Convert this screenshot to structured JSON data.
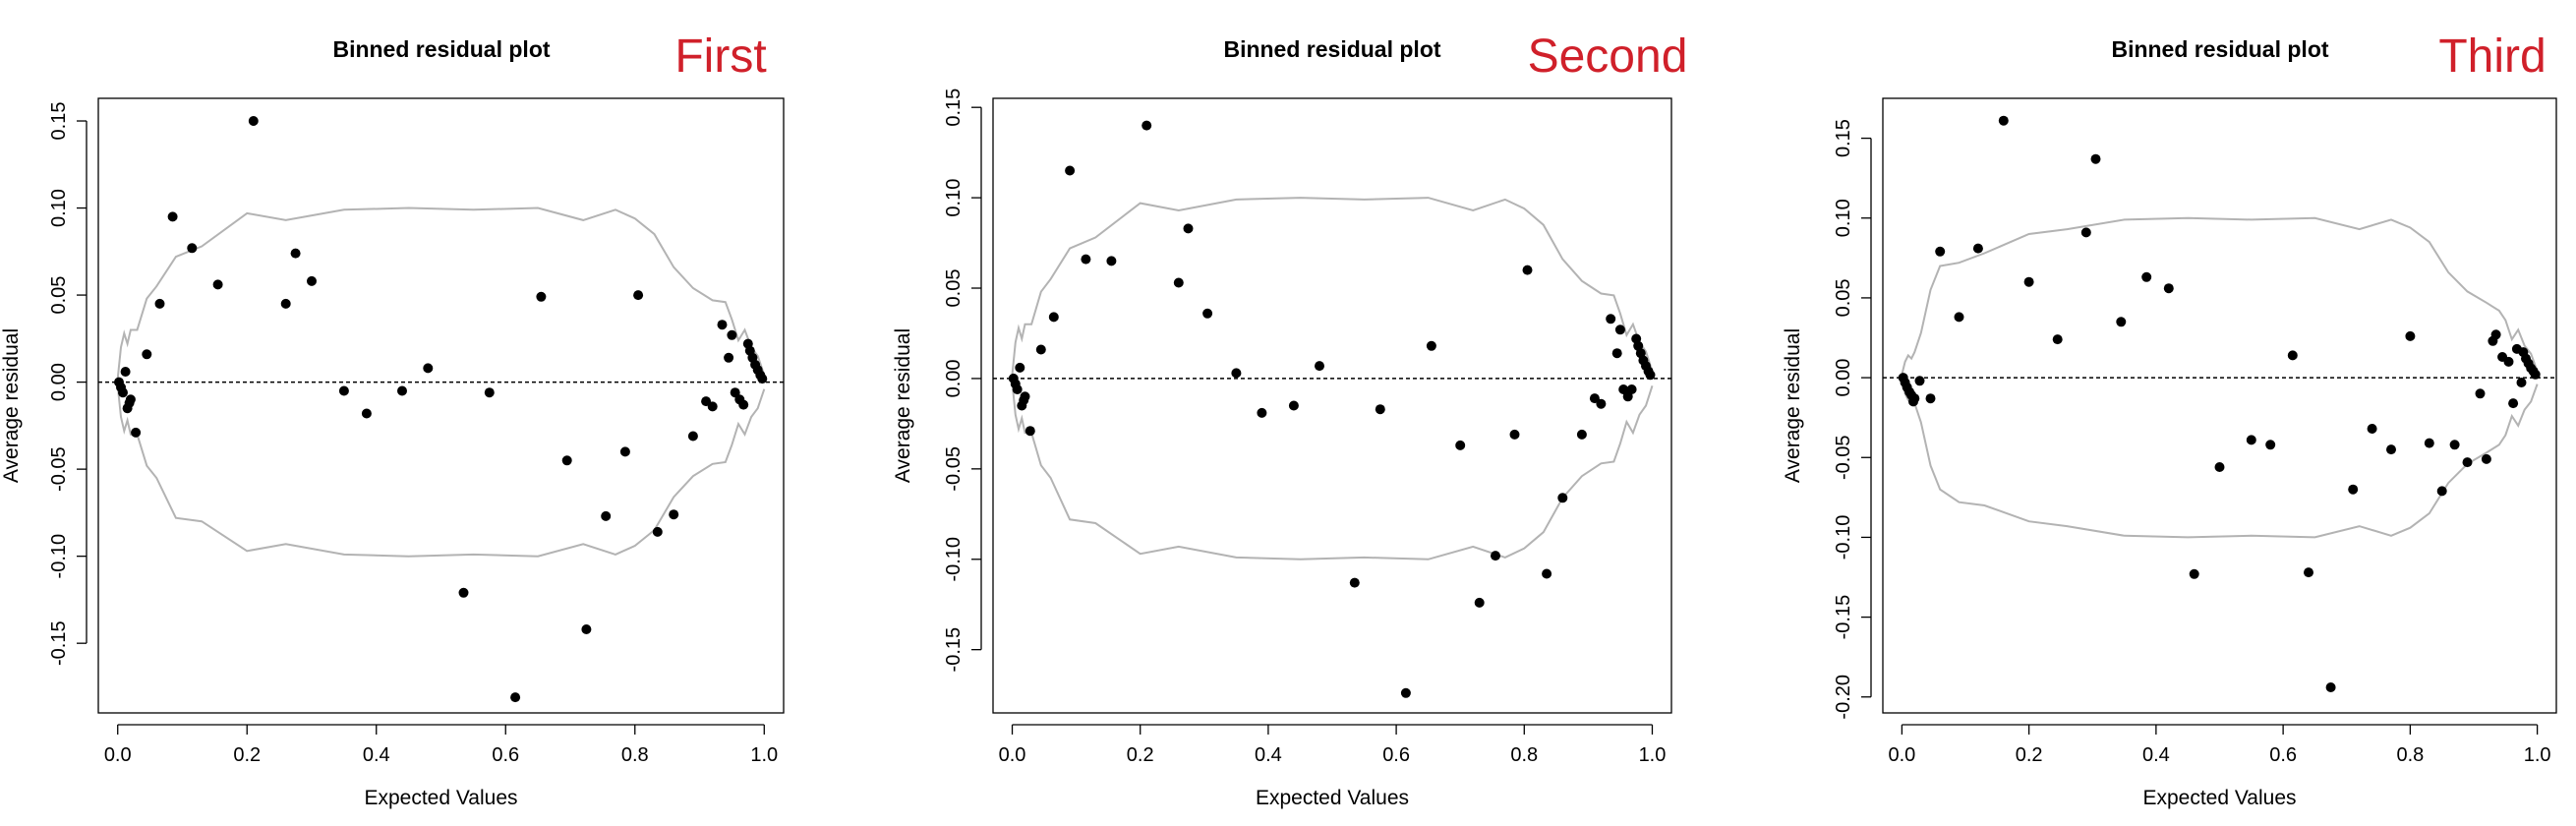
{
  "colors": {
    "points": "#000000",
    "envelope": "#b3b3b3",
    "tag": "#d0202a",
    "axis": "#000000"
  },
  "panels": [
    {
      "tag": "First"
    },
    {
      "tag": "Second"
    },
    {
      "tag": "Third"
    }
  ],
  "chart_data": [
    {
      "type": "scatter",
      "title": "Binned residual plot",
      "xlabel": "Expected Values",
      "ylabel": "Average residual",
      "xlim": [
        -0.03,
        1.03
      ],
      "ylim": [
        -0.19,
        0.163
      ],
      "xticks": [
        0.0,
        0.2,
        0.4,
        0.6,
        0.8,
        1.0
      ],
      "xtick_labels": [
        "0.0",
        "0.2",
        "0.4",
        "0.6",
        "0.8",
        "1.0"
      ],
      "yticks": [
        -0.15,
        -0.1,
        -0.05,
        0.0,
        0.05,
        0.1,
        0.15
      ],
      "ytick_labels": [
        "-0.15",
        "-0.10",
        "-0.05",
        "0.00",
        "0.05",
        "0.10",
        "0.15"
      ],
      "reference_line": 0,
      "grid": false,
      "points": {
        "x": [
          0.002,
          0.005,
          0.008,
          0.012,
          0.015,
          0.02,
          0.018,
          0.028,
          0.045,
          0.065,
          0.085,
          0.115,
          0.155,
          0.21,
          0.26,
          0.275,
          0.3,
          0.35,
          0.385,
          0.44,
          0.48,
          0.535,
          0.575,
          0.615,
          0.655,
          0.695,
          0.725,
          0.755,
          0.785,
          0.805,
          0.835,
          0.86,
          0.89,
          0.91,
          0.92,
          0.935,
          0.945,
          0.95,
          0.955,
          0.962,
          0.968,
          0.975,
          0.978,
          0.982,
          0.986,
          0.99,
          0.994,
          0.997
        ],
        "y": [
          0.0,
          -0.003,
          -0.006,
          0.006,
          -0.015,
          -0.01,
          -0.012,
          -0.029,
          0.016,
          0.045,
          0.095,
          0.077,
          0.056,
          0.15,
          0.045,
          0.074,
          0.058,
          -0.005,
          -0.018,
          -0.005,
          0.008,
          -0.121,
          -0.006,
          -0.181,
          0.049,
          -0.045,
          -0.142,
          -0.077,
          -0.04,
          0.05,
          -0.086,
          -0.076,
          -0.031,
          -0.011,
          -0.014,
          0.033,
          0.014,
          0.027,
          -0.006,
          -0.01,
          -0.013,
          0.022,
          0.018,
          0.014,
          0.01,
          0.007,
          0.004,
          0.002
        ]
      },
      "envelope": {
        "x": [
          0.0,
          0.005,
          0.01,
          0.015,
          0.02,
          0.03,
          0.045,
          0.06,
          0.09,
          0.13,
          0.2,
          0.26,
          0.35,
          0.45,
          0.55,
          0.65,
          0.72,
          0.77,
          0.8,
          0.83,
          0.86,
          0.89,
          0.92,
          0.94,
          0.95,
          0.96,
          0.97,
          0.98,
          0.99,
          1.0
        ],
        "upper": [
          0.002,
          0.02,
          0.028,
          0.022,
          0.03,
          0.03,
          0.048,
          0.055,
          0.072,
          0.078,
          0.097,
          0.093,
          0.099,
          0.1,
          0.099,
          0.1,
          0.093,
          0.099,
          0.094,
          0.085,
          0.066,
          0.054,
          0.047,
          0.046,
          0.036,
          0.024,
          0.03,
          0.02,
          0.015,
          0.004
        ],
        "lower": [
          -0.002,
          -0.02,
          -0.028,
          -0.022,
          -0.03,
          -0.03,
          -0.048,
          -0.055,
          -0.078,
          -0.08,
          -0.097,
          -0.093,
          -0.099,
          -0.1,
          -0.099,
          -0.1,
          -0.093,
          -0.099,
          -0.094,
          -0.085,
          -0.066,
          -0.054,
          -0.047,
          -0.046,
          -0.036,
          -0.024,
          -0.03,
          -0.02,
          -0.015,
          -0.004
        ]
      }
    },
    {
      "type": "scatter",
      "title": "Binned residual plot",
      "xlabel": "Expected Values",
      "ylabel": "Average residual",
      "xlim": [
        -0.03,
        1.03
      ],
      "ylim": [
        -0.185,
        0.155
      ],
      "xticks": [
        0.0,
        0.2,
        0.4,
        0.6,
        0.8,
        1.0
      ],
      "xtick_labels": [
        "0.0",
        "0.2",
        "0.4",
        "0.6",
        "0.8",
        "1.0"
      ],
      "yticks": [
        -0.15,
        -0.1,
        -0.05,
        0.0,
        0.05,
        0.1,
        0.15
      ],
      "ytick_labels": [
        "-0.15",
        "-0.10",
        "-0.05",
        "0.00",
        "0.05",
        "0.10",
        "0.15"
      ],
      "reference_line": 0,
      "grid": false,
      "points": {
        "x": [
          0.002,
          0.005,
          0.008,
          0.012,
          0.015,
          0.02,
          0.018,
          0.028,
          0.045,
          0.065,
          0.09,
          0.115,
          0.155,
          0.21,
          0.26,
          0.275,
          0.305,
          0.35,
          0.39,
          0.44,
          0.48,
          0.535,
          0.575,
          0.615,
          0.655,
          0.7,
          0.73,
          0.755,
          0.785,
          0.805,
          0.835,
          0.86,
          0.89,
          0.91,
          0.92,
          0.935,
          0.945,
          0.95,
          0.955,
          0.962,
          0.968,
          0.975,
          0.978,
          0.982,
          0.986,
          0.99,
          0.994,
          0.997
        ],
        "y": [
          0.0,
          -0.003,
          -0.006,
          0.006,
          -0.015,
          -0.01,
          -0.012,
          -0.029,
          0.016,
          0.034,
          0.115,
          0.066,
          0.065,
          0.14,
          0.053,
          0.083,
          0.036,
          0.003,
          -0.019,
          -0.015,
          0.007,
          -0.113,
          -0.017,
          -0.174,
          0.018,
          -0.037,
          -0.124,
          -0.098,
          -0.031,
          0.06,
          -0.108,
          -0.066,
          -0.031,
          -0.011,
          -0.014,
          0.033,
          0.014,
          0.027,
          -0.006,
          -0.01,
          -0.006,
          0.022,
          0.018,
          0.014,
          0.01,
          0.007,
          0.004,
          0.002
        ]
      },
      "envelope": {
        "x": [
          0.0,
          0.005,
          0.01,
          0.015,
          0.02,
          0.03,
          0.045,
          0.06,
          0.09,
          0.13,
          0.2,
          0.26,
          0.35,
          0.45,
          0.55,
          0.65,
          0.72,
          0.77,
          0.8,
          0.83,
          0.86,
          0.89,
          0.92,
          0.94,
          0.95,
          0.96,
          0.97,
          0.98,
          0.99,
          1.0
        ],
        "upper": [
          0.002,
          0.02,
          0.028,
          0.022,
          0.03,
          0.03,
          0.048,
          0.055,
          0.072,
          0.078,
          0.097,
          0.093,
          0.099,
          0.1,
          0.099,
          0.1,
          0.093,
          0.099,
          0.094,
          0.085,
          0.066,
          0.054,
          0.047,
          0.046,
          0.036,
          0.024,
          0.03,
          0.02,
          0.015,
          0.004
        ],
        "lower": [
          -0.002,
          -0.02,
          -0.028,
          -0.022,
          -0.03,
          -0.03,
          -0.048,
          -0.055,
          -0.078,
          -0.08,
          -0.097,
          -0.093,
          -0.099,
          -0.1,
          -0.099,
          -0.1,
          -0.093,
          -0.099,
          -0.094,
          -0.085,
          -0.066,
          -0.054,
          -0.047,
          -0.046,
          -0.036,
          -0.024,
          -0.03,
          -0.02,
          -0.015,
          -0.004
        ]
      }
    },
    {
      "type": "scatter",
      "title": "Binned residual plot",
      "xlabel": "Expected Values",
      "ylabel": "Average residual",
      "xlim": [
        -0.03,
        1.03
      ],
      "ylim": [
        -0.21,
        0.175
      ],
      "xticks": [
        0.0,
        0.2,
        0.4,
        0.6,
        0.8,
        1.0
      ],
      "xtick_labels": [
        "0.0",
        "0.2",
        "0.4",
        "0.6",
        "0.8",
        "1.0"
      ],
      "yticks": [
        -0.2,
        -0.15,
        -0.1,
        -0.05,
        0.0,
        0.05,
        0.1,
        0.15
      ],
      "ytick_labels": [
        "-0.20",
        "-0.15",
        "-0.10",
        "-0.05",
        "0.00",
        "0.05",
        "0.10",
        "0.15"
      ],
      "reference_line": 0,
      "grid": false,
      "points": {
        "x": [
          0.002,
          0.005,
          0.008,
          0.012,
          0.015,
          0.02,
          0.018,
          0.028,
          0.045,
          0.06,
          0.09,
          0.12,
          0.16,
          0.2,
          0.245,
          0.29,
          0.305,
          0.345,
          0.385,
          0.42,
          0.46,
          0.5,
          0.55,
          0.58,
          0.615,
          0.64,
          0.675,
          0.71,
          0.74,
          0.77,
          0.8,
          0.83,
          0.85,
          0.87,
          0.89,
          0.91,
          0.92,
          0.93,
          0.935,
          0.945,
          0.955,
          0.962,
          0.968,
          0.975,
          0.978,
          0.982,
          0.986,
          0.99,
          0.994,
          0.997
        ],
        "y": [
          0.0,
          -0.003,
          -0.006,
          -0.009,
          -0.011,
          -0.013,
          -0.015,
          -0.002,
          -0.013,
          0.079,
          0.038,
          0.081,
          0.161,
          0.06,
          0.024,
          0.091,
          0.137,
          0.035,
          0.063,
          0.056,
          -0.123,
          -0.056,
          -0.039,
          -0.042,
          0.014,
          -0.122,
          -0.194,
          -0.07,
          -0.032,
          -0.045,
          0.026,
          -0.041,
          -0.071,
          -0.042,
          -0.053,
          -0.01,
          -0.051,
          0.023,
          0.027,
          0.013,
          0.01,
          -0.016,
          0.018,
          -0.003,
          0.016,
          0.012,
          0.009,
          0.006,
          0.004,
          0.002
        ]
      },
      "envelope": {
        "x": [
          0.0,
          0.005,
          0.01,
          0.015,
          0.02,
          0.03,
          0.045,
          0.06,
          0.09,
          0.13,
          0.2,
          0.26,
          0.35,
          0.45,
          0.55,
          0.65,
          0.72,
          0.77,
          0.8,
          0.83,
          0.86,
          0.89,
          0.92,
          0.94,
          0.95,
          0.96,
          0.97,
          0.98,
          0.99,
          1.0
        ],
        "upper": [
          0.002,
          0.01,
          0.014,
          0.012,
          0.016,
          0.028,
          0.055,
          0.07,
          0.072,
          0.078,
          0.09,
          0.093,
          0.099,
          0.1,
          0.099,
          0.1,
          0.093,
          0.099,
          0.094,
          0.085,
          0.066,
          0.054,
          0.047,
          0.042,
          0.036,
          0.024,
          0.03,
          0.02,
          0.015,
          0.004
        ],
        "lower": [
          -0.002,
          -0.01,
          -0.014,
          -0.012,
          -0.016,
          -0.028,
          -0.055,
          -0.07,
          -0.078,
          -0.08,
          -0.09,
          -0.093,
          -0.099,
          -0.1,
          -0.099,
          -0.1,
          -0.093,
          -0.099,
          -0.094,
          -0.085,
          -0.066,
          -0.054,
          -0.047,
          -0.042,
          -0.036,
          -0.024,
          -0.03,
          -0.02,
          -0.015,
          -0.004
        ]
      }
    }
  ]
}
